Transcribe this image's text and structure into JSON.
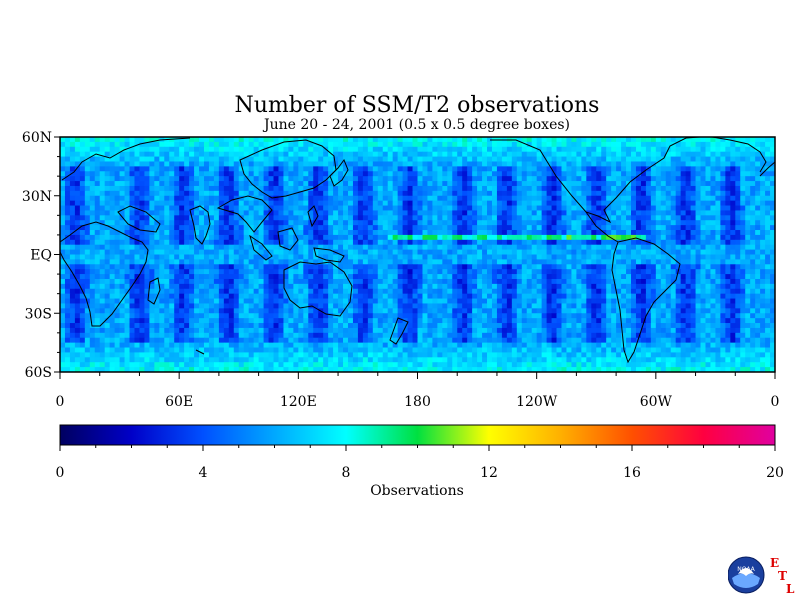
{
  "chart_data": {
    "type": "heatmap",
    "title": "Number of SSM/T2 observations",
    "subtitle": "June 20 - 24, 2001 (0.5 x 0.5 degree boxes)",
    "x_ticks": [
      "0",
      "60E",
      "120E",
      "180",
      "120W",
      "60W",
      "0"
    ],
    "y_ticks": [
      "60N",
      "30N",
      "EQ",
      "30S",
      "60S"
    ],
    "x_range_deg_east": [
      0,
      360
    ],
    "y_range_deg_lat": [
      -60,
      60
    ],
    "grid": false,
    "colorbar": {
      "label": "Observations",
      "ticks": [
        "0",
        "4",
        "8",
        "12",
        "16",
        "20"
      ],
      "range": [
        0,
        20
      ],
      "colors": [
        "#000060",
        "#0000c8",
        "#0050ff",
        "#00a8ff",
        "#00ffff",
        "#00e040",
        "#ffff00",
        "#ffb000",
        "#ff5000",
        "#ff0040",
        "#e000a0"
      ]
    },
    "pattern": {
      "swath_gap_centers_deg_east": [
        8,
        40,
        62,
        85,
        108,
        130,
        153,
        176,
        203,
        225,
        248,
        270,
        293,
        315,
        338
      ],
      "typical_value_open_ocean": 6,
      "typical_value_swath_gap": 3,
      "typical_value_high_latitude": 8,
      "equatorial_band_peak_value": 10
    }
  },
  "logo": {
    "agency": "NOAA",
    "lab": [
      "E",
      "T",
      "L"
    ],
    "lab_color": "#dd0000"
  }
}
